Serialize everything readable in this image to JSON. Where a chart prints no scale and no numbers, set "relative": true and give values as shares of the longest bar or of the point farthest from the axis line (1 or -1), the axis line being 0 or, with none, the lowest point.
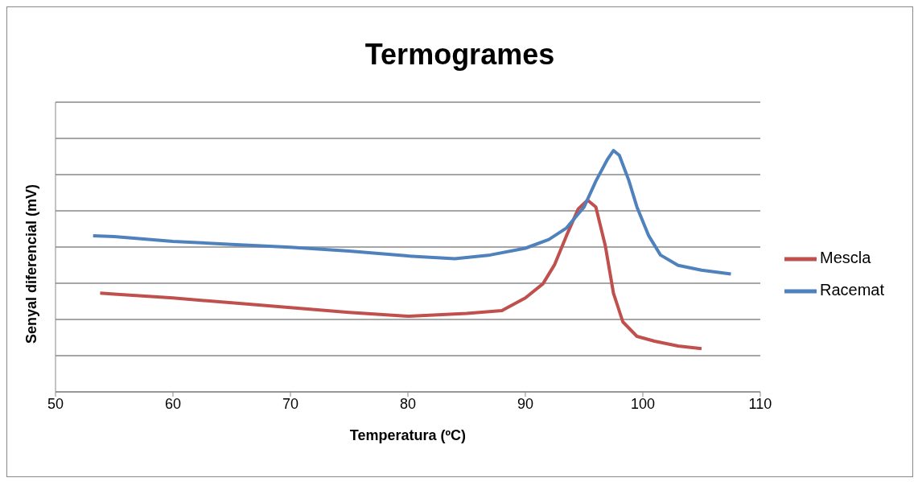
{
  "chart_data": {
    "type": "line",
    "title": "Termogrames",
    "xlabel": "Temperatura (ºC)",
    "ylabel": "Senyal diferencial (mV)",
    "relative": true,
    "xlim": [
      50,
      110
    ],
    "xticks": [
      50,
      60,
      70,
      80,
      90,
      100,
      110
    ],
    "grid": "y",
    "legend": "right",
    "marker": "none",
    "line_style": "solid",
    "series": [
      {
        "name": "Mescla",
        "color": "#c0504d",
        "x": [
          53.8,
          55,
          60,
          65,
          70,
          75,
          80,
          85,
          88,
          90,
          91.5,
          92.5,
          93.5,
          94.5,
          95.3,
          96,
          96.8,
          97.5,
          98.3,
          99.5,
          101,
          103,
          105
        ],
        "values": [
          0.409,
          0.405,
          0.389,
          0.369,
          0.349,
          0.329,
          0.313,
          0.325,
          0.337,
          0.389,
          0.448,
          0.528,
          0.647,
          0.758,
          0.794,
          0.766,
          0.607,
          0.409,
          0.29,
          0.23,
          0.21,
          0.19,
          0.179
        ]
      },
      {
        "name": "Racemat",
        "color": "#4f81bd",
        "x": [
          53.2,
          55,
          60,
          65,
          70,
          75,
          80,
          84,
          87,
          90,
          92,
          93.5,
          95,
          96,
          97,
          97.5,
          98,
          98.8,
          99.5,
          100.5,
          101.5,
          103,
          105,
          107.5
        ],
        "values": [
          0.647,
          0.643,
          0.623,
          0.611,
          0.599,
          0.583,
          0.563,
          0.552,
          0.567,
          0.595,
          0.631,
          0.679,
          0.766,
          0.873,
          0.964,
          1.0,
          0.98,
          0.877,
          0.766,
          0.647,
          0.567,
          0.524,
          0.504,
          0.488
        ]
      }
    ]
  }
}
